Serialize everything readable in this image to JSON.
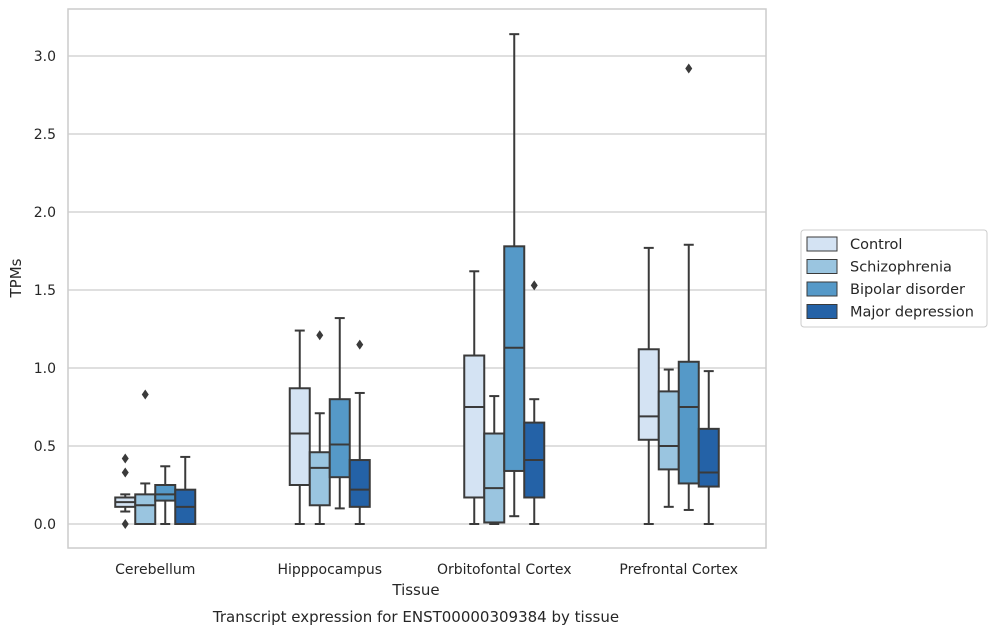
{
  "chart_data": {
    "type": "boxplot",
    "title": "",
    "caption": "Transcript expression for ENST00000309384 by tissue",
    "xlabel": "Tissue",
    "ylabel": "TPMs",
    "ylim": [
      -0.15,
      3.3
    ],
    "yticks": [
      0.0,
      0.5,
      1.0,
      1.5,
      2.0,
      2.5,
      3.0
    ],
    "ytick_labels": [
      "0.0",
      "0.5",
      "1.0",
      "1.5",
      "2.0",
      "2.5",
      "3.0"
    ],
    "categories": [
      "Cerebellum",
      "Hipppocampus",
      "Orbitofontal Cortex",
      "Prefrontal Cortex"
    ],
    "grid": "horizontal",
    "legend_position": "right",
    "series": [
      {
        "name": "Control",
        "color": "#d4e3f3",
        "boxes": [
          {
            "whislo": 0.08,
            "q1": 0.11,
            "med": 0.14,
            "q3": 0.17,
            "whishi": 0.19,
            "fliers": [
              0.42,
              0.33,
              0.0
            ]
          },
          {
            "whislo": 0.0,
            "q1": 0.25,
            "med": 0.58,
            "q3": 0.87,
            "whishi": 1.24,
            "fliers": []
          },
          {
            "whislo": 0.0,
            "q1": 0.17,
            "med": 0.75,
            "q3": 1.08,
            "whishi": 1.62,
            "fliers": []
          },
          {
            "whislo": 0.0,
            "q1": 0.54,
            "med": 0.69,
            "q3": 1.12,
            "whishi": 1.77,
            "fliers": []
          }
        ]
      },
      {
        "name": "Schizophrenia",
        "color": "#9ac5e0",
        "boxes": [
          {
            "whislo": 0.0,
            "q1": 0.0,
            "med": 0.12,
            "q3": 0.19,
            "whishi": 0.26,
            "fliers": [
              0.83
            ]
          },
          {
            "whislo": 0.0,
            "q1": 0.12,
            "med": 0.36,
            "q3": 0.46,
            "whishi": 0.71,
            "fliers": [
              1.21
            ]
          },
          {
            "whislo": 0.0,
            "q1": 0.01,
            "med": 0.23,
            "q3": 0.58,
            "whishi": 0.82,
            "fliers": []
          },
          {
            "whislo": 0.11,
            "q1": 0.35,
            "med": 0.5,
            "q3": 0.85,
            "whishi": 0.99,
            "fliers": []
          }
        ]
      },
      {
        "name": "Bipolar disorder",
        "color": "#5599c8",
        "boxes": [
          {
            "whislo": 0.0,
            "q1": 0.15,
            "med": 0.19,
            "q3": 0.25,
            "whishi": 0.37,
            "fliers": []
          },
          {
            "whislo": 0.1,
            "q1": 0.3,
            "med": 0.51,
            "q3": 0.8,
            "whishi": 1.32,
            "fliers": []
          },
          {
            "whislo": 0.05,
            "q1": 0.34,
            "med": 1.13,
            "q3": 1.78,
            "whishi": 3.14,
            "fliers": []
          },
          {
            "whislo": 0.09,
            "q1": 0.26,
            "med": 0.75,
            "q3": 1.04,
            "whishi": 1.79,
            "fliers": [
              2.92
            ]
          }
        ]
      },
      {
        "name": "Major depression",
        "color": "#2462a7",
        "boxes": [
          {
            "whislo": 0.0,
            "q1": 0.0,
            "med": 0.11,
            "q3": 0.22,
            "whishi": 0.43,
            "fliers": []
          },
          {
            "whislo": 0.0,
            "q1": 0.11,
            "med": 0.22,
            "q3": 0.41,
            "whishi": 0.84,
            "fliers": [
              1.15
            ]
          },
          {
            "whislo": 0.0,
            "q1": 0.17,
            "med": 0.41,
            "q3": 0.65,
            "whishi": 0.8,
            "fliers": [
              1.53
            ]
          },
          {
            "whislo": 0.0,
            "q1": 0.24,
            "med": 0.33,
            "q3": 0.61,
            "whishi": 0.98,
            "fliers": []
          }
        ]
      }
    ]
  }
}
